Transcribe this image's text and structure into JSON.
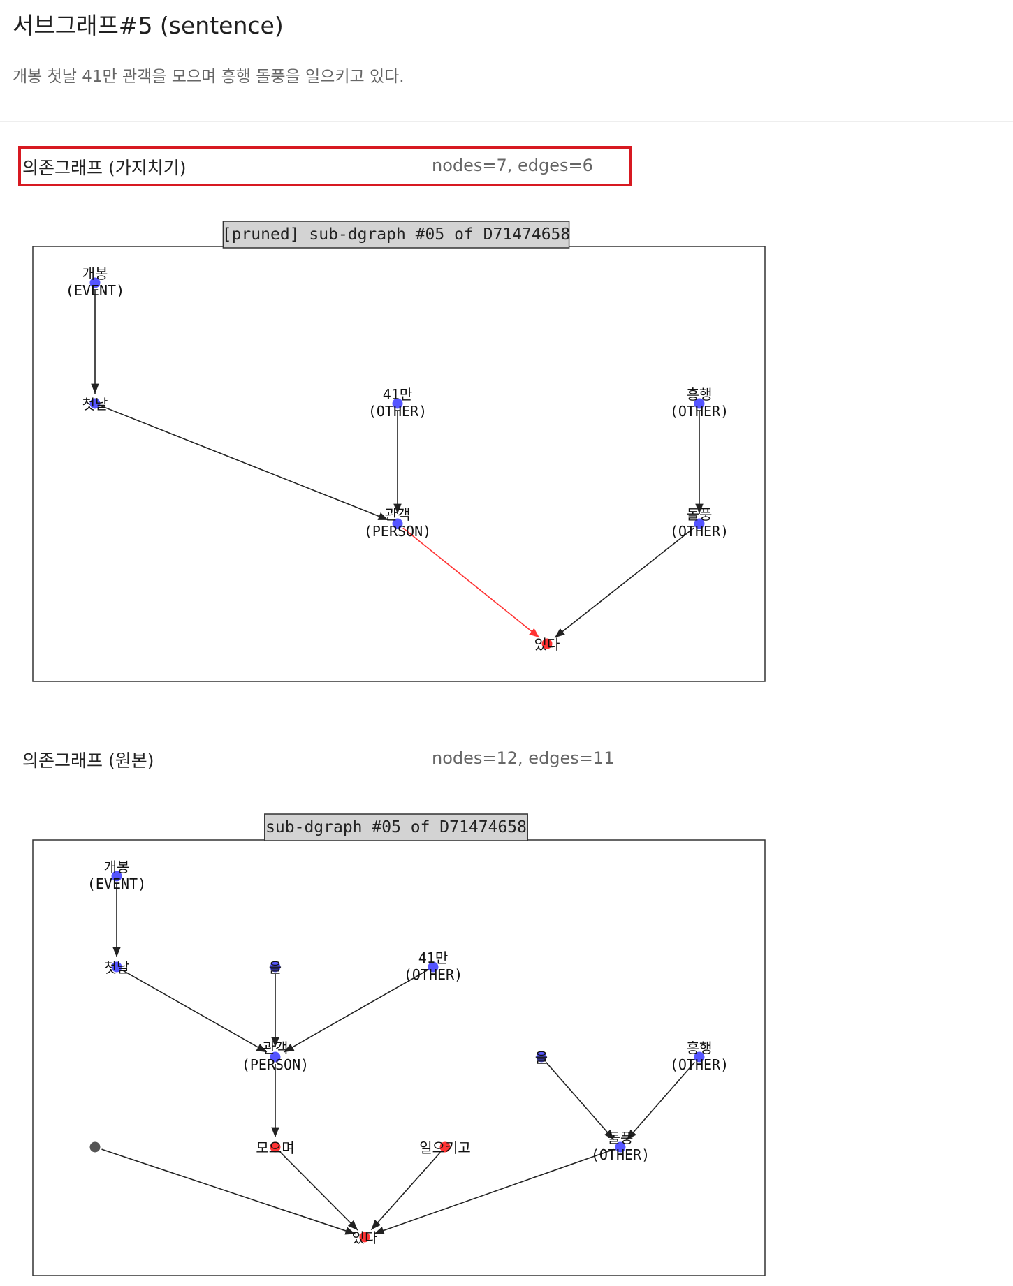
{
  "header": {
    "title": "서브그래프#5 (sentence)",
    "sentence": "개봉 첫날 41만 관객을 모으며 흥행 돌풍을 일으키고 있다."
  },
  "pruned": {
    "label": "의존그래프 (가지치기)",
    "stats": "nodes=7, edges=6",
    "figure_title": "[pruned] sub-dgraph #05 of D71474658",
    "nodes": [
      {
        "id": "gaebong",
        "word": "개봉",
        "tag": "(EVENT)",
        "color": "#5555ff"
      },
      {
        "id": "cheotnal",
        "word": "첫날",
        "tag": "",
        "color": "#5555ff"
      },
      {
        "id": "41man",
        "word": "41만",
        "tag": "(OTHER)",
        "color": "#5555ff"
      },
      {
        "id": "heunghaeng",
        "word": "흥행",
        "tag": "(OTHER)",
        "color": "#5555ff"
      },
      {
        "id": "gwangaek",
        "word": "관객",
        "tag": "(PERSON)",
        "color": "#5555ff"
      },
      {
        "id": "dolpung",
        "word": "돌풍",
        "tag": "(OTHER)",
        "color": "#5555ff"
      },
      {
        "id": "itda",
        "word": "있다",
        "tag": "",
        "color": "#ff3333"
      }
    ],
    "edges": [
      {
        "from": "gaebong",
        "to": "cheotnal",
        "color": "#222222"
      },
      {
        "from": "cheotnal",
        "to": "gwangaek",
        "color": "#222222"
      },
      {
        "from": "41man",
        "to": "gwangaek",
        "color": "#222222"
      },
      {
        "from": "heunghaeng",
        "to": "dolpung",
        "color": "#222222"
      },
      {
        "from": "gwangaek",
        "to": "itda",
        "color": "#ff3333"
      },
      {
        "from": "dolpung",
        "to": "itda",
        "color": "#222222"
      }
    ]
  },
  "original": {
    "label": "의존그래프 (원본)",
    "stats": "nodes=12, edges=11",
    "figure_title": "sub-dgraph #05 of D71474658",
    "nodes": [
      {
        "id": "gaebong",
        "word": "개봉",
        "tag": "(EVENT)",
        "color": "#5555ff"
      },
      {
        "id": "cheotnal",
        "word": "첫날",
        "tag": "",
        "color": "#5555ff"
      },
      {
        "id": "eul1",
        "word": "을",
        "tag": "",
        "color": "#5555ff"
      },
      {
        "id": "41man",
        "word": "41만",
        "tag": "(OTHER)",
        "color": "#5555ff"
      },
      {
        "id": "gwangaek",
        "word": "관객",
        "tag": "(PERSON)",
        "color": "#5555ff"
      },
      {
        "id": "eul2",
        "word": "을",
        "tag": "",
        "color": "#5555ff"
      },
      {
        "id": "heunghaeng",
        "word": "흥행",
        "tag": "(OTHER)",
        "color": "#5555ff"
      },
      {
        "id": "dot",
        "word": "",
        "tag": "",
        "color": "#555555"
      },
      {
        "id": "moeumyeo",
        "word": "모으며",
        "tag": "",
        "color": "#ff3333"
      },
      {
        "id": "ireukigo",
        "word": "일으키고",
        "tag": "",
        "color": "#ff3333"
      },
      {
        "id": "dolpung",
        "word": "돌풍",
        "tag": "(OTHER)",
        "color": "#5555ff"
      },
      {
        "id": "itda",
        "word": "있다",
        "tag": "",
        "color": "#ff3333"
      }
    ],
    "edges": [
      {
        "from": "gaebong",
        "to": "cheotnal",
        "color": "#222222"
      },
      {
        "from": "cheotnal",
        "to": "gwangaek",
        "color": "#222222"
      },
      {
        "from": "eul1",
        "to": "gwangaek",
        "color": "#222222"
      },
      {
        "from": "41man",
        "to": "gwangaek",
        "color": "#222222"
      },
      {
        "from": "gwangaek",
        "to": "moeumyeo",
        "color": "#222222"
      },
      {
        "from": "moeumyeo",
        "to": "itda",
        "color": "#222222"
      },
      {
        "from": "dot",
        "to": "itda",
        "color": "#222222"
      },
      {
        "from": "ireukigo",
        "to": "itda",
        "color": "#222222"
      },
      {
        "from": "eul2",
        "to": "dolpung",
        "color": "#222222"
      },
      {
        "from": "heunghaeng",
        "to": "dolpung",
        "color": "#222222"
      },
      {
        "from": "dolpung",
        "to": "itda",
        "color": "#222222"
      }
    ]
  }
}
